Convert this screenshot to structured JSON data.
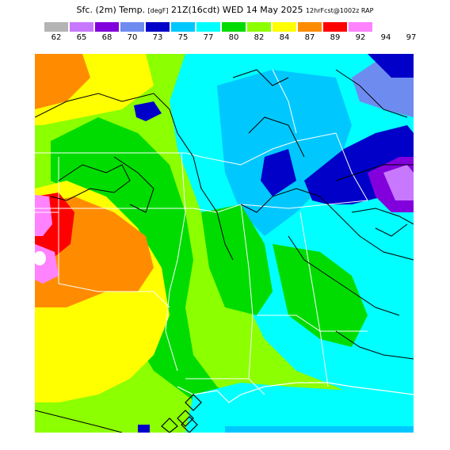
{
  "title": {
    "product": "Sfc. (2m) Temp.",
    "units": "[degF]",
    "valid": "21Z(16cdt) WED 14 May 2025",
    "forecast": "12hrFcst@1002z RAP"
  },
  "legend": {
    "colors": [
      "#b4b4b4",
      "#c878ff",
      "#8200dc",
      "#6e8cf0",
      "#0000c8",
      "#00c8ff",
      "#00ffff",
      "#00dc00",
      "#8cff00",
      "#ffff00",
      "#ff8c00",
      "#ff0000",
      "#ff82ff"
    ],
    "labels": [
      "62",
      "65",
      "68",
      "70",
      "73",
      "75",
      "77",
      "80",
      "82",
      "84",
      "87",
      "89",
      "92",
      "94",
      "97"
    ]
  }
}
